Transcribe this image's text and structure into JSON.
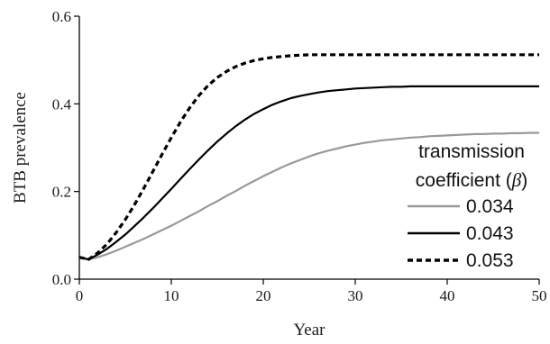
{
  "chart_data": {
    "type": "line",
    "xlabel": "Year",
    "ylabel": "BTB prevalence",
    "xlim": [
      0,
      50
    ],
    "ylim": [
      0,
      0.6
    ],
    "xticks": [
      0,
      10,
      20,
      30,
      40,
      50
    ],
    "xtick_labels": [
      "0",
      "10",
      "20",
      "30",
      "40",
      "50"
    ],
    "yticks": [
      0,
      0.2,
      0.4,
      0.6
    ],
    "ytick_labels": [
      "0.0",
      "0.2",
      "0.4",
      "0.6"
    ],
    "grid": false,
    "legend": {
      "title_line1": "transmission",
      "title_line2": "coefficient (",
      "title_symbol": "β",
      "title_close": ")",
      "placement": "bottom-right"
    },
    "series": [
      {
        "name": "0.034",
        "color": "#999999",
        "dash": "solid",
        "x": [
          0,
          1,
          2,
          3,
          4,
          5,
          6,
          7,
          8,
          9,
          10,
          11,
          12,
          13,
          14,
          15,
          16,
          17,
          18,
          19,
          20,
          21,
          22,
          23,
          24,
          25,
          26,
          27,
          28,
          29,
          30,
          31,
          32,
          33,
          34,
          35,
          36,
          37,
          38,
          39,
          40,
          41,
          42,
          43,
          44,
          45,
          46,
          47,
          48,
          49,
          50
        ],
        "y": [
          0.05,
          0.045,
          0.05,
          0.057,
          0.065,
          0.074,
          0.083,
          0.092,
          0.102,
          0.112,
          0.122,
          0.133,
          0.144,
          0.155,
          0.167,
          0.178,
          0.19,
          0.201,
          0.213,
          0.224,
          0.235,
          0.245,
          0.255,
          0.264,
          0.272,
          0.28,
          0.287,
          0.293,
          0.298,
          0.303,
          0.307,
          0.311,
          0.314,
          0.317,
          0.319,
          0.321,
          0.323,
          0.324,
          0.326,
          0.327,
          0.328,
          0.329,
          0.33,
          0.331,
          0.331,
          0.332,
          0.332,
          0.333,
          0.333,
          0.334,
          0.334
        ]
      },
      {
        "name": "0.043",
        "color": "#000000",
        "dash": "solid",
        "x": [
          0,
          1,
          2,
          3,
          4,
          5,
          6,
          7,
          8,
          9,
          10,
          11,
          12,
          13,
          14,
          15,
          16,
          17,
          18,
          19,
          20,
          21,
          22,
          23,
          24,
          25,
          26,
          27,
          28,
          29,
          30,
          31,
          32,
          33,
          34,
          35,
          36,
          37,
          38,
          39,
          40,
          41,
          42,
          43,
          44,
          45,
          46,
          47,
          48,
          49,
          50
        ],
        "y": [
          0.05,
          0.045,
          0.056,
          0.069,
          0.085,
          0.102,
          0.121,
          0.141,
          0.162,
          0.184,
          0.206,
          0.229,
          0.251,
          0.273,
          0.294,
          0.314,
          0.332,
          0.349,
          0.364,
          0.377,
          0.388,
          0.398,
          0.406,
          0.413,
          0.418,
          0.422,
          0.426,
          0.429,
          0.431,
          0.433,
          0.435,
          0.436,
          0.437,
          0.438,
          0.439,
          0.439,
          0.44,
          0.44,
          0.44,
          0.44,
          0.44,
          0.44,
          0.44,
          0.44,
          0.44,
          0.44,
          0.44,
          0.44,
          0.44,
          0.44,
          0.44
        ]
      },
      {
        "name": "0.053",
        "color": "#000000",
        "dash": "dotted",
        "x": [
          0,
          1,
          2,
          3,
          4,
          5,
          6,
          7,
          8,
          9,
          10,
          11,
          12,
          13,
          14,
          15,
          16,
          17,
          18,
          19,
          20,
          21,
          22,
          23,
          24,
          25,
          26,
          27,
          28,
          29,
          30,
          31,
          32,
          33,
          34,
          35,
          36,
          37,
          38,
          39,
          40,
          41,
          42,
          43,
          44,
          45,
          46,
          47,
          48,
          49,
          50
        ],
        "y": [
          0.05,
          0.045,
          0.06,
          0.08,
          0.106,
          0.136,
          0.17,
          0.207,
          0.246,
          0.285,
          0.323,
          0.359,
          0.391,
          0.419,
          0.442,
          0.46,
          0.474,
          0.485,
          0.493,
          0.499,
          0.503,
          0.506,
          0.508,
          0.51,
          0.511,
          0.512,
          0.512,
          0.512,
          0.512,
          0.512,
          0.512,
          0.512,
          0.512,
          0.512,
          0.512,
          0.512,
          0.512,
          0.512,
          0.512,
          0.512,
          0.512,
          0.512,
          0.512,
          0.512,
          0.512,
          0.512,
          0.512,
          0.512,
          0.512,
          0.512,
          0.512
        ]
      }
    ]
  }
}
